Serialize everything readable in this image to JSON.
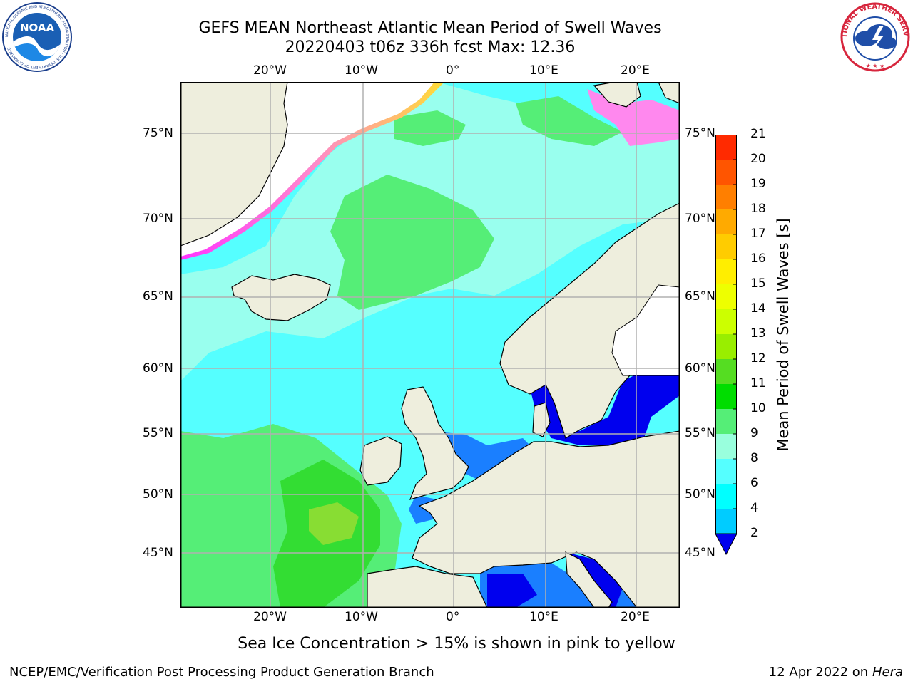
{
  "title": {
    "line1": "GEFS MEAN Northeast Atlantic Mean Period of Swell Waves",
    "line2": "20220403 t06z 336h fcst   Max: 12.36"
  },
  "logos": {
    "left": {
      "name": "NOAA",
      "ring_text": "NATIONAL OCEANIC AND ATMOSPHERIC ADMINISTRATION · U.S. DEPARTMENT OF COMMERCE",
      "colors": {
        "sky": "#1a5fb4",
        "water": "#1e88e5"
      }
    },
    "right": {
      "name": "NATIONAL WEATHER SERVICE",
      "colors": {
        "ring": "#d7263d",
        "cloud": "#1f4ea8"
      }
    }
  },
  "map": {
    "region": "Northeast Atlantic",
    "lon_labels_top": [
      "20°W",
      "10°W",
      "0°",
      "10°E",
      "20°E"
    ],
    "lon_labels_bottom": [
      "20°W",
      "10°W",
      "0°",
      "10°E",
      "20°E"
    ],
    "lat_labels_left": [
      "75°N",
      "70°N",
      "65°N",
      "60°N",
      "55°N",
      "50°N",
      "45°N"
    ],
    "lat_labels_right": [
      "75°N",
      "70°N",
      "65°N",
      "60°N",
      "55°N",
      "50°N",
      "45°N"
    ],
    "colors": {
      "land": "#eeeedd",
      "ice": "#ffffff",
      "grid": "#b0b0b0",
      "coast": "#000000"
    }
  },
  "colorbar": {
    "title": "Mean Period of Swell Waves [s]",
    "labels": [
      "21",
      "20",
      "19",
      "18",
      "17",
      "16",
      "15",
      "14",
      "13",
      "12",
      "11",
      "10",
      "9",
      "8",
      "6",
      "4",
      "2"
    ],
    "bands": [
      "#ff0000",
      "#ff2a00",
      "#ff5500",
      "#ff7f00",
      "#ffaa00",
      "#ffcc00",
      "#ffee00",
      "#eeff00",
      "#ccff00",
      "#99ee00",
      "#55dd22",
      "#00dd00",
      "#55ee77",
      "#99ffdd",
      "#55ffff",
      "#00ffff",
      "#00ccff",
      "#007fff"
    ],
    "under_color": "#0000ee"
  },
  "footnote": "Sea Ice Concentration > 15% is shown in pink to yellow",
  "credit": "NCEP/EMC/Verification Post Processing Product Generation Branch",
  "date_stamp": {
    "date": "12 Apr 2022 on",
    "machine": "Hera"
  }
}
